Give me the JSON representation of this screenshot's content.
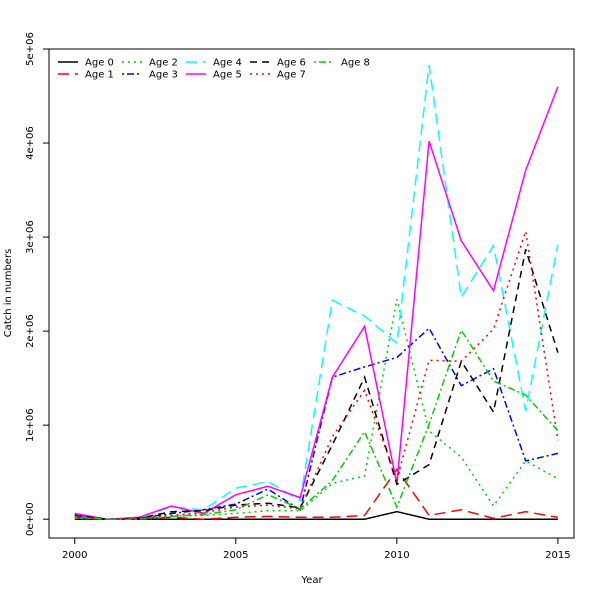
{
  "chart_data": {
    "type": "line",
    "xlabel": "Year",
    "ylabel": "Catch in numbers",
    "xlim": [
      1999.2,
      2015.5
    ],
    "ylim": [
      -200000,
      5000000
    ],
    "x_ticks": [
      2000,
      2005,
      2010,
      2015
    ],
    "y_ticks": [
      {
        "value": 0,
        "label": "0e+00"
      },
      {
        "value": 1000000,
        "label": "1e+06"
      },
      {
        "value": 2000000,
        "label": "2e+06"
      },
      {
        "value": 3000000,
        "label": "3e+06"
      },
      {
        "value": 4000000,
        "label": "4e+06"
      },
      {
        "value": 5000000,
        "label": "5e+06"
      }
    ],
    "grid": false,
    "legend_position": "top-left",
    "x": [
      2000,
      2001,
      2002,
      2003,
      2004,
      2005,
      2006,
      2007,
      2008,
      2009,
      2010,
      2011,
      2012,
      2013,
      2014,
      2015
    ],
    "series": [
      {
        "name": "Age 0",
        "color": "#000000",
        "dash": "solid",
        "values": [
          0,
          0,
          0,
          0,
          0,
          0,
          0,
          0,
          0,
          0,
          80000,
          0,
          0,
          0,
          0,
          0
        ]
      },
      {
        "name": "Age 1",
        "color": "#ff0000",
        "dash": "longdash",
        "values": [
          20000,
          0,
          10000,
          20000,
          0,
          20000,
          30000,
          20000,
          20000,
          40000,
          530000,
          40000,
          100000,
          10000,
          80000,
          20000
        ]
      },
      {
        "name": "Age 2",
        "color": "#00cd00",
        "dash": "dotted",
        "values": [
          10000,
          0,
          10000,
          30000,
          40000,
          60000,
          90000,
          90000,
          380000,
          460000,
          2340000,
          940000,
          660000,
          140000,
          620000,
          430000
        ]
      },
      {
        "name": "Age 3",
        "color": "#0000ff",
        "dash": "dotdash",
        "values": [
          50000,
          0,
          10000,
          60000,
          100000,
          160000,
          320000,
          100000,
          1510000,
          1620000,
          1720000,
          2030000,
          1420000,
          1600000,
          620000,
          700000
        ]
      },
      {
        "name": "Age 4",
        "color": "#00ffff",
        "dash": "longdash",
        "values": [
          60000,
          0,
          20000,
          130000,
          100000,
          330000,
          400000,
          200000,
          2330000,
          2160000,
          1870000,
          4830000,
          2360000,
          2910000,
          1150000,
          2920000
        ]
      },
      {
        "name": "Age 5",
        "color": "#ff00ff",
        "dash": "solid",
        "values": [
          60000,
          0,
          20000,
          140000,
          60000,
          260000,
          350000,
          230000,
          1510000,
          2050000,
          380000,
          4020000,
          2960000,
          2430000,
          3710000,
          4600000
        ]
      },
      {
        "name": "Age 6",
        "color": "#000000",
        "dash": "dashed",
        "values": [
          40000,
          0,
          10000,
          80000,
          90000,
          150000,
          170000,
          120000,
          790000,
          1510000,
          370000,
          580000,
          1680000,
          1140000,
          2870000,
          1770000
        ]
      },
      {
        "name": "Age 7",
        "color": "#ff0000",
        "dash": "dotted",
        "values": [
          30000,
          0,
          10000,
          40000,
          70000,
          130000,
          150000,
          110000,
          880000,
          1370000,
          420000,
          1690000,
          1680000,
          2020000,
          3060000,
          840000
        ]
      },
      {
        "name": "Age 8",
        "color": "#00cd00",
        "dash": "dotdash",
        "values": [
          20000,
          0,
          0,
          30000,
          50000,
          100000,
          260000,
          110000,
          410000,
          930000,
          130000,
          1010000,
          2010000,
          1470000,
          1320000,
          940000
        ]
      }
    ]
  }
}
